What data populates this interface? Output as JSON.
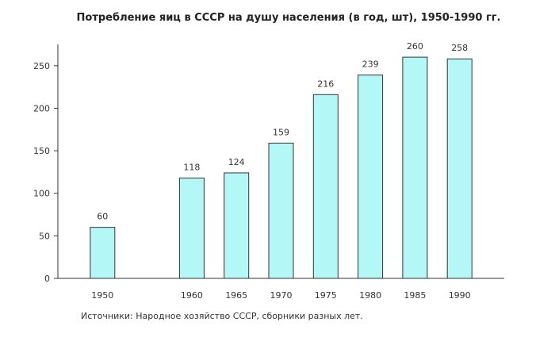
{
  "chart_data": {
    "type": "bar",
    "title": "Потребление яиц в СССР на душу населения (в год, шт), 1950-1990 гг.",
    "xlabel": "",
    "ylabel": "",
    "x": [
      1950,
      1960,
      1965,
      1970,
      1975,
      1980,
      1985,
      1990
    ],
    "categories": [
      "1950",
      "1960",
      "1965",
      "1970",
      "1975",
      "1980",
      "1985",
      "1990"
    ],
    "values": [
      60,
      118,
      124,
      159,
      216,
      239,
      260,
      258
    ],
    "data_labels": [
      "60",
      "118",
      "124",
      "159",
      "216",
      "239",
      "260",
      "258"
    ],
    "xlim": [
      1945,
      1995
    ],
    "ylim": [
      0,
      275
    ],
    "y_ticks": [
      0,
      50,
      100,
      150,
      200,
      250
    ],
    "y_tick_labels": [
      "0",
      "50",
      "100",
      "150",
      "200",
      "250"
    ],
    "grid": false,
    "legend": "none",
    "bar_color": "#b3f7f7",
    "bar_stroke": "#333333",
    "source": "Источники: Народное хозяйство СССР, сборники разных лет."
  }
}
